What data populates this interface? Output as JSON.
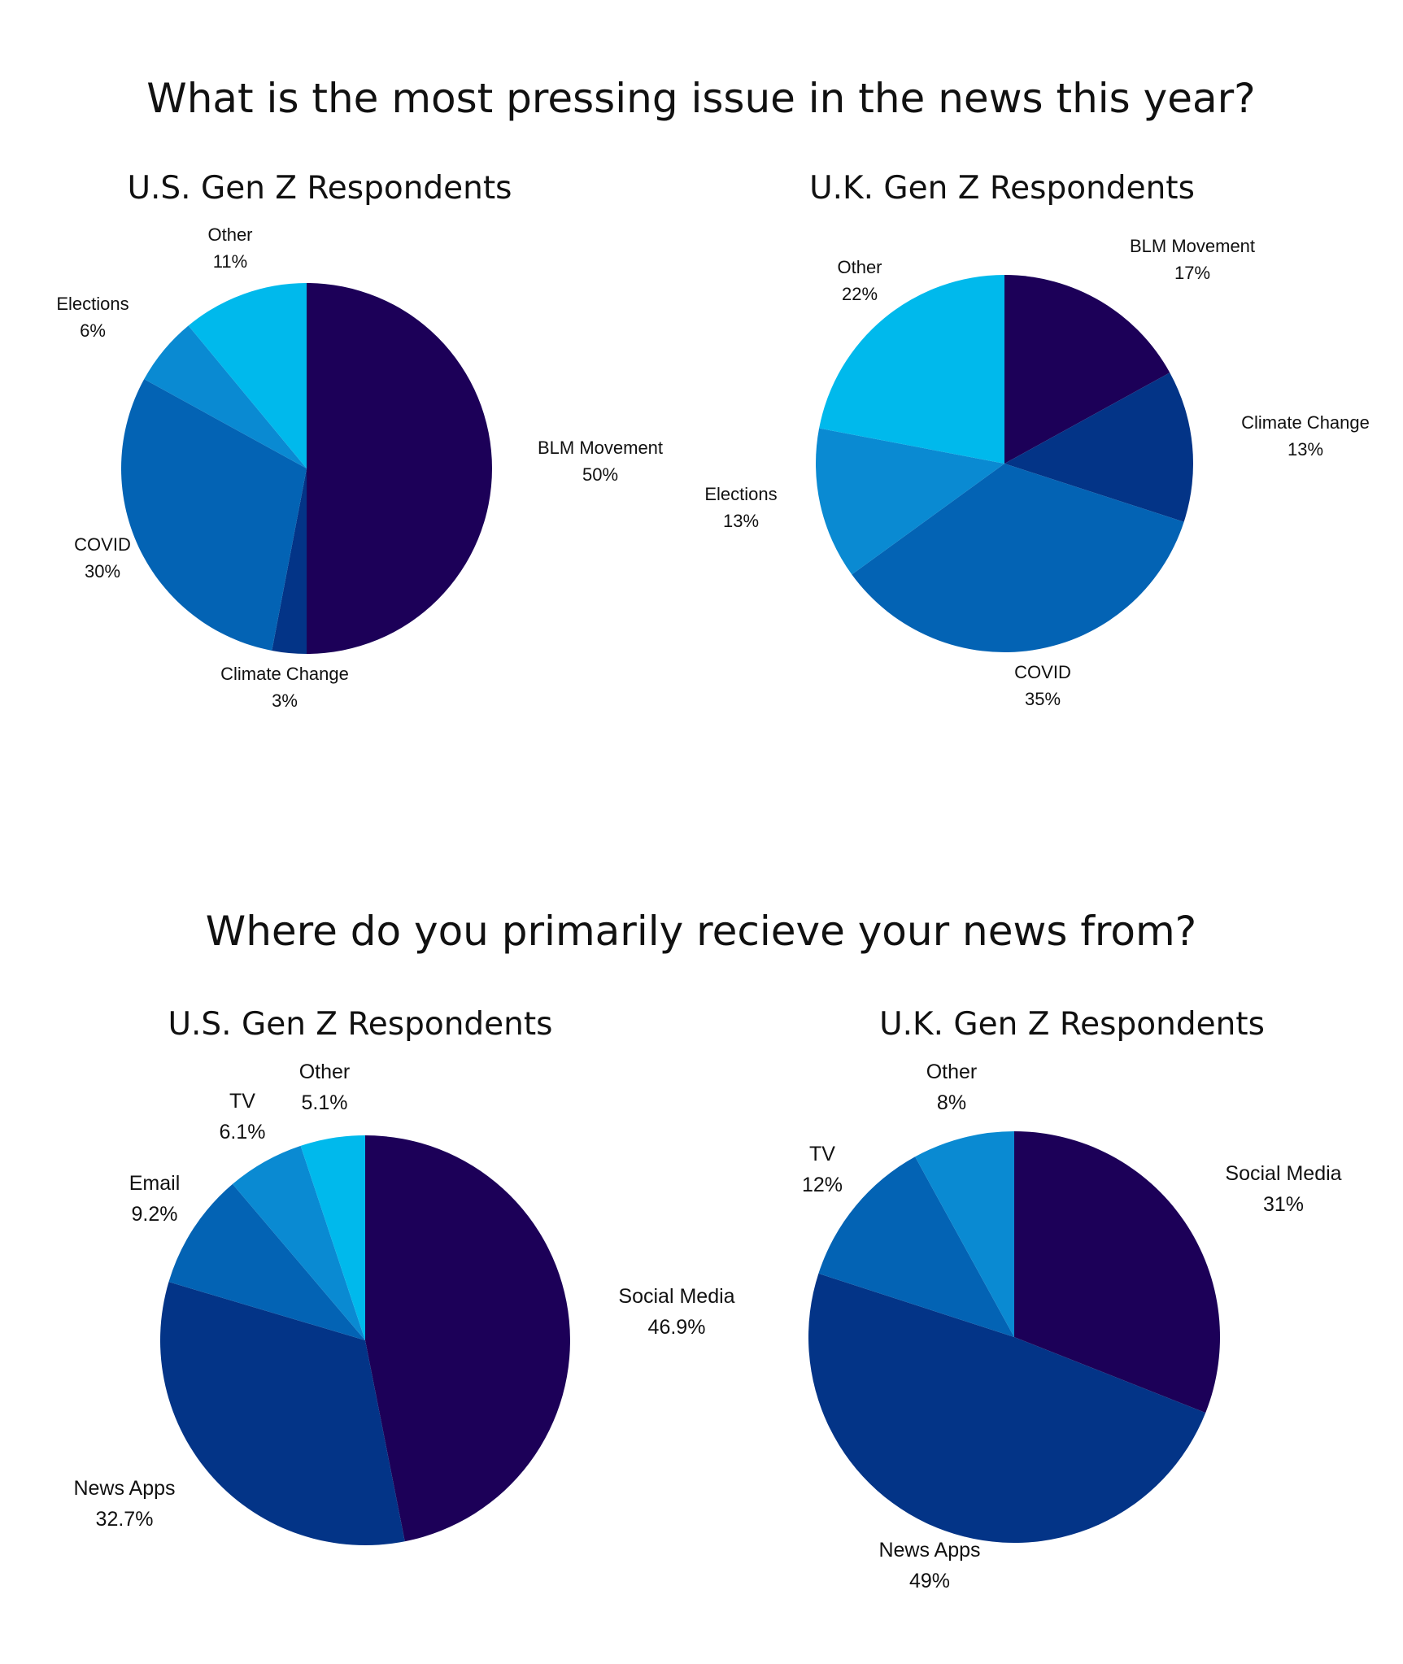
{
  "sections": [
    {
      "title": "What is the most pressing issue in the news this year?"
    },
    {
      "title": "Where do you primarily recieve your news from?"
    }
  ],
  "colors": {
    "darkest": "#1c0058",
    "navy": "#033487",
    "blue": "#0363b4",
    "mid": "#0a8ad2",
    "light": "#00b9ec"
  },
  "chart_data": [
    {
      "type": "pie",
      "title": "U.S. Gen Z Respondents",
      "slices": [
        {
          "label": "BLM Movement",
          "value": 50,
          "display": "50%",
          "color": "#1c0058"
        },
        {
          "label": "Climate Change",
          "value": 3,
          "display": "3%",
          "color": "#033487"
        },
        {
          "label": "COVID",
          "value": 30,
          "display": "30%",
          "color": "#0363b4"
        },
        {
          "label": "Elections",
          "value": 6,
          "display": "6%",
          "color": "#0a8ad2"
        },
        {
          "label": "Other",
          "value": 11,
          "display": "11%",
          "color": "#00b9ec"
        }
      ]
    },
    {
      "type": "pie",
      "title": "U.K. Gen Z Respondents",
      "slices": [
        {
          "label": "BLM Movement",
          "value": 17,
          "display": "17%",
          "color": "#1c0058"
        },
        {
          "label": "Climate Change",
          "value": 13,
          "display": "13%",
          "color": "#033487"
        },
        {
          "label": "COVID",
          "value": 35,
          "display": "35%",
          "color": "#0363b4"
        },
        {
          "label": "Elections",
          "value": 13,
          "display": "13%",
          "color": "#0a8ad2"
        },
        {
          "label": "Other",
          "value": 22,
          "display": "22%",
          "color": "#00b9ec"
        }
      ]
    },
    {
      "type": "pie",
      "title": "U.S. Gen Z Respondents",
      "slices": [
        {
          "label": "Social Media",
          "value": 46.9,
          "display": "46.9%",
          "color": "#1c0058"
        },
        {
          "label": "News Apps",
          "value": 32.7,
          "display": "32.7%",
          "color": "#033487"
        },
        {
          "label": "Email",
          "value": 9.2,
          "display": "9.2%",
          "color": "#0363b4"
        },
        {
          "label": "TV",
          "value": 6.1,
          "display": "6.1%",
          "color": "#0a8ad2"
        },
        {
          "label": "Other",
          "value": 5.1,
          "display": "5.1%",
          "color": "#00b9ec"
        }
      ]
    },
    {
      "type": "pie",
      "title": "U.K. Gen Z Respondents",
      "slices": [
        {
          "label": "Social Media",
          "value": 31,
          "display": "31%",
          "color": "#1c0058"
        },
        {
          "label": "News Apps",
          "value": 49,
          "display": "49%",
          "color": "#033487"
        },
        {
          "label": "TV",
          "value": 12,
          "display": "12%",
          "color": "#0363b4"
        },
        {
          "label": "Other",
          "value": 8,
          "display": "8%",
          "color": "#0a8ad2"
        }
      ]
    }
  ]
}
